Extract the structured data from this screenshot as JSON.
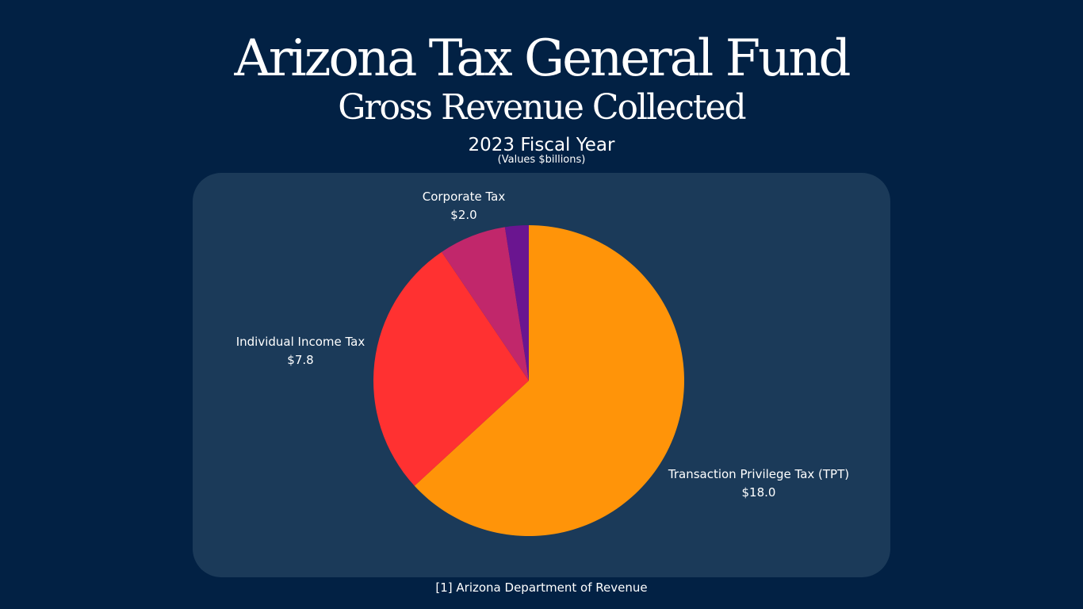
{
  "chart_data": {
    "type": "pie",
    "title": "Arizona Tax General Fund",
    "subtitle": "Gross Revenue Collected",
    "period": "2023 Fiscal Year",
    "units_note": "(Values $billions)",
    "source": "[1] Arizona Department of Revenue",
    "start_angle_deg": 0,
    "direction": "clockwise",
    "legend": "none",
    "slices": [
      {
        "name": "Transaction Privilege Tax (TPT)",
        "value": 18.0,
        "value_label": "$18.0",
        "color": "#ff9409"
      },
      {
        "name": "Individual Income Tax",
        "value": 7.8,
        "value_label": "$7.8",
        "color": "#ff3131"
      },
      {
        "name": "Corporate Tax",
        "value": 2.0,
        "value_label": "$2.0",
        "color": "#c1276b"
      },
      {
        "name": "",
        "value": 0.7,
        "value_label": "",
        "color": "#6a1590"
      }
    ]
  },
  "colors": {
    "background": "#022144",
    "panel": "#1b3a59",
    "text": "#ffffff"
  }
}
